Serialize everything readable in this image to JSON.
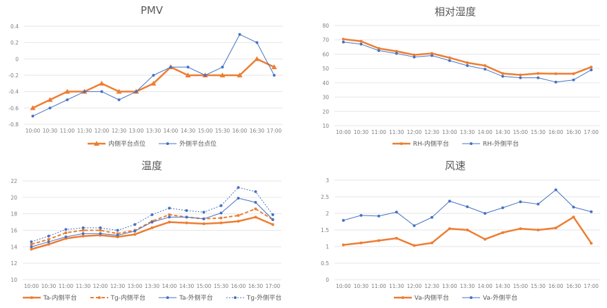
{
  "colors": {
    "inner": "#ED7D31",
    "outer": "#4472C4",
    "grid": "#E6E6E6",
    "text": "#595959"
  },
  "chart_data": [
    {
      "type": "line",
      "title": "PMV",
      "categories": [
        "10:00",
        "10:30",
        "11:00",
        "11:30",
        "12:00",
        "12:30",
        "13:00",
        "13:30",
        "14:00",
        "14:30",
        "15:00",
        "15:30",
        "16:00",
        "16:30",
        "17:00"
      ],
      "ylim": [
        -0.8,
        0.4
      ],
      "yticks": [
        -0.8,
        -0.6,
        -0.4,
        -0.2,
        0,
        0.2,
        0.4
      ],
      "grid": true,
      "legend": "bottom",
      "series": [
        {
          "name": "内侧平台点位",
          "color": "inner",
          "marker": "triangle",
          "dash": false,
          "width": 2.5,
          "values": [
            -0.6,
            -0.5,
            -0.4,
            -0.4,
            -0.3,
            -0.4,
            -0.4,
            -0.3,
            -0.1,
            -0.2,
            -0.2,
            -0.2,
            -0.2,
            0,
            -0.1
          ]
        },
        {
          "name": "外侧平台点位",
          "color": "outer",
          "marker": "dot",
          "dash": false,
          "width": 1,
          "values": [
            -0.7,
            -0.6,
            -0.5,
            -0.4,
            -0.4,
            -0.5,
            -0.4,
            -0.2,
            -0.1,
            -0.1,
            -0.2,
            -0.1,
            0.3,
            0.2,
            -0.2
          ]
        }
      ]
    },
    {
      "type": "line",
      "title": "相对湿度",
      "categories": [
        "10:00",
        "10:30",
        "11:00",
        "11:30",
        "12:00",
        "12:30",
        "13:00",
        "13:30",
        "14:00",
        "14:30",
        "15:00",
        "15:30",
        "16:00",
        "16:30",
        "17:00"
      ],
      "ylim": [
        10,
        80
      ],
      "yticks": [
        10,
        20,
        30,
        40,
        50,
        60,
        70,
        80
      ],
      "grid": true,
      "legend": "bottom",
      "series": [
        {
          "name": "RH-内侧平台",
          "color": "inner",
          "marker": "dot",
          "dash": false,
          "width": 2.5,
          "values": [
            70.5,
            69,
            64,
            62,
            59.5,
            60.5,
            57.5,
            54,
            52,
            46.5,
            45.5,
            46.5,
            46.3,
            46.3,
            51
          ]
        },
        {
          "name": "RH-外侧平台",
          "color": "outer",
          "marker": "dot",
          "dash": false,
          "width": 1,
          "values": [
            68.5,
            67,
            62.5,
            60.5,
            58,
            59,
            55.5,
            52,
            49.5,
            44.5,
            43.5,
            43.5,
            40.5,
            42,
            49
          ]
        }
      ]
    },
    {
      "type": "line",
      "title": "温度",
      "categories": [
        "10:00",
        "10:30",
        "11:00",
        "11:30",
        "12:00",
        "12:30",
        "13:00",
        "13:30",
        "14:00",
        "14:30",
        "15:00",
        "15:30",
        "16:00",
        "16:30",
        "17:00"
      ],
      "ylim": [
        10,
        22
      ],
      "yticks": [
        10,
        12,
        14,
        16,
        18,
        20,
        22
      ],
      "grid": true,
      "legend": "bottom",
      "series": [
        {
          "name": "Ta-内侧平台",
          "color": "inner",
          "marker": "dot",
          "dash": false,
          "width": 2.5,
          "values": [
            13.7,
            14.3,
            15.0,
            15.3,
            15.4,
            15.2,
            15.5,
            16.3,
            17.0,
            16.9,
            16.8,
            16.9,
            17.1,
            17.6,
            16.7
          ]
        },
        {
          "name": "Tg-内侧平台",
          "color": "inner",
          "marker": "dot",
          "dash": true,
          "width": 2,
          "values": [
            14.3,
            14.9,
            15.7,
            16.0,
            16.0,
            15.6,
            16.0,
            17.1,
            17.9,
            17.6,
            17.4,
            17.5,
            17.8,
            18.6,
            17.3
          ]
        },
        {
          "name": "Ta-外侧平台",
          "color": "outer",
          "marker": "dot",
          "dash": false,
          "width": 1,
          "values": [
            14.0,
            14.6,
            15.2,
            15.6,
            15.6,
            15.4,
            15.9,
            17.0,
            17.6,
            17.6,
            17.4,
            18.1,
            19.9,
            19.4,
            17.3
          ]
        },
        {
          "name": "Tg-外侧平台",
          "color": "outer",
          "marker": "dot",
          "dash": true,
          "width": 1,
          "values": [
            14.6,
            15.3,
            16.1,
            16.3,
            16.3,
            16.0,
            16.7,
            17.9,
            18.7,
            18.4,
            18.2,
            19.0,
            21.2,
            20.7,
            17.9
          ]
        }
      ]
    },
    {
      "type": "line",
      "title": "风速",
      "categories": [
        "10:00",
        "10:30",
        "11:00",
        "11:30",
        "12:00",
        "12:30",
        "13:00",
        "13:30",
        "14:00",
        "14:30",
        "15:00",
        "15:30",
        "16:00",
        "16:30",
        "17:00"
      ],
      "ylim": [
        0,
        3
      ],
      "yticks": [
        0,
        0.5,
        1,
        1.5,
        2,
        2.5,
        3
      ],
      "grid": true,
      "legend": "bottom",
      "series": [
        {
          "name": "Va-内侧平台",
          "color": "inner",
          "marker": "dot",
          "dash": false,
          "width": 2.5,
          "values": [
            1.05,
            1.11,
            1.18,
            1.25,
            1.03,
            1.11,
            1.54,
            1.5,
            1.22,
            1.42,
            1.54,
            1.5,
            1.56,
            1.89,
            1.1
          ]
        },
        {
          "name": "Va-外侧平台",
          "color": "outer",
          "marker": "dot",
          "dash": false,
          "width": 1,
          "values": [
            1.79,
            1.94,
            1.92,
            2.04,
            1.63,
            1.88,
            2.37,
            2.2,
            2.0,
            2.17,
            2.35,
            2.28,
            2.71,
            2.19,
            2.05
          ]
        }
      ]
    }
  ]
}
